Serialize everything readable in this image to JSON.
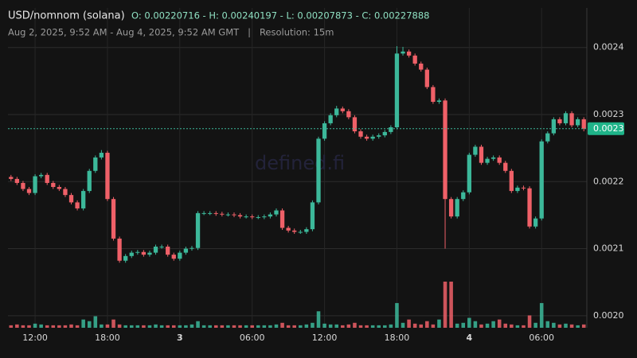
{
  "chart_data": {
    "type": "candlestick",
    "title": "USD/nomnom (solana)",
    "ohlc_summary": "O: 0.00220716 - H: 0.00240197 - L: 0.00207873 - C: 0.00227888",
    "subtitle": "Aug 2, 2025, 9:52 AM - Aug 4, 2025, 9:52 AM GMT   |   Resolution: 15m",
    "watermark": "defined.fi",
    "price_label": "0.0023",
    "up_color": "#3cb89a",
    "down_color": "#ef6068",
    "grid": true,
    "ylim": [
      0.001982,
      0.002459
    ],
    "yticks": [
      {
        "value": 0.002,
        "label": "0.0020"
      },
      0.0021,
      0.0022,
      0.0023,
      0.0024
    ],
    "xlim": [
      0,
      96
    ],
    "xticks": [
      {
        "value": 4.5,
        "label": "12:00"
      },
      {
        "value": 16.5,
        "label": "18:00"
      },
      {
        "value": 28.5,
        "label": "3"
      },
      {
        "value": 40.5,
        "label": "06:00"
      },
      {
        "value": 52.5,
        "label": "12:00"
      },
      {
        "value": 64.5,
        "label": "18:00"
      },
      {
        "value": 76.5,
        "label": "4"
      },
      {
        "value": 88.5,
        "label": "06:00"
      }
    ],
    "ohlc": [
      [
        0.002207,
        0.00221,
        0.002201,
        0.002204
      ],
      [
        0.002204,
        0.002207,
        0.002195,
        0.002198
      ],
      [
        0.002198,
        0.002201,
        0.002186,
        0.002189
      ],
      [
        0.002189,
        0.002192,
        0.00218,
        0.002183
      ],
      [
        0.002183,
        0.002211,
        0.00218,
        0.002208
      ],
      [
        0.002208,
        0.002213,
        0.002205,
        0.00221
      ],
      [
        0.00221,
        0.002213,
        0.002195,
        0.002198
      ],
      [
        0.002198,
        0.002201,
        0.002189,
        0.002192
      ],
      [
        0.002192,
        0.002195,
        0.002186,
        0.002189
      ],
      [
        0.002189,
        0.002192,
        0.002177,
        0.00218
      ],
      [
        0.00218,
        0.002183,
        0.002166,
        0.002169
      ],
      [
        0.002169,
        0.002172,
        0.002157,
        0.00216
      ],
      [
        0.00216,
        0.002189,
        0.002157,
        0.002186
      ],
      [
        0.002186,
        0.002219,
        0.002183,
        0.002216
      ],
      [
        0.002216,
        0.002239,
        0.002213,
        0.002236
      ],
      [
        0.002236,
        0.002247,
        0.002233,
        0.002243
      ],
      [
        0.002243,
        0.002246,
        0.002171,
        0.002174
      ],
      [
        0.002174,
        0.002177,
        0.002112,
        0.002115
      ],
      [
        0.002115,
        0.002118,
        0.002079,
        0.002082
      ],
      [
        0.002082,
        0.002092,
        0.002079,
        0.002089
      ],
      [
        0.002089,
        0.002097,
        0.002086,
        0.002094
      ],
      [
        0.002094,
        0.002098,
        0.002091,
        0.002095
      ],
      [
        0.002095,
        0.002098,
        0.002088,
        0.002091
      ],
      [
        0.002091,
        0.002097,
        0.002088,
        0.002094
      ],
      [
        0.002094,
        0.002106,
        0.002091,
        0.002103
      ],
      [
        0.002103,
        0.002106,
        0.0021,
        0.002103
      ],
      [
        0.002103,
        0.002106,
        0.002088,
        0.002091
      ],
      [
        0.002091,
        0.002094,
        0.002082,
        0.002085
      ],
      [
        0.002085,
        0.002097,
        0.002082,
        0.002094
      ],
      [
        0.002094,
        0.002103,
        0.002091,
        0.0021
      ],
      [
        0.0021,
        0.002104,
        0.002097,
        0.002101
      ],
      [
        0.002101,
        0.002156,
        0.002098,
        0.002153
      ],
      [
        0.002153,
        0.002156,
        0.00215,
        0.002153
      ],
      [
        0.002153,
        0.002156,
        0.00215,
        0.002153
      ],
      [
        0.002153,
        0.002156,
        0.002149,
        0.002152
      ],
      [
        0.002152,
        0.002155,
        0.002148,
        0.002151
      ],
      [
        0.002151,
        0.002154,
        0.002148,
        0.002151
      ],
      [
        0.002151,
        0.002154,
        0.002147,
        0.00215
      ],
      [
        0.00215,
        0.002153,
        0.002145,
        0.002148
      ],
      [
        0.002148,
        0.002151,
        0.002145,
        0.002148
      ],
      [
        0.002148,
        0.002151,
        0.002144,
        0.002147
      ],
      [
        0.002147,
        0.00215,
        0.002144,
        0.002147
      ],
      [
        0.002147,
        0.002151,
        0.002144,
        0.002148
      ],
      [
        0.002148,
        0.002154,
        0.002145,
        0.002151
      ],
      [
        0.002151,
        0.00216,
        0.002148,
        0.002157
      ],
      [
        0.002157,
        0.00216,
        0.002128,
        0.002131
      ],
      [
        0.002131,
        0.002134,
        0.002124,
        0.002127
      ],
      [
        0.002127,
        0.00213,
        0.002122,
        0.002125
      ],
      [
        0.002125,
        0.002128,
        0.002122,
        0.002125
      ],
      [
        0.002125,
        0.002132,
        0.002122,
        0.002129
      ],
      [
        0.002129,
        0.002172,
        0.002126,
        0.002169
      ],
      [
        0.002169,
        0.002267,
        0.002166,
        0.002264
      ],
      [
        0.002264,
        0.00229,
        0.002261,
        0.002287
      ],
      [
        0.002287,
        0.002302,
        0.002284,
        0.002299
      ],
      [
        0.002299,
        0.002313,
        0.002296,
        0.002309
      ],
      [
        0.002309,
        0.002312,
        0.002302,
        0.002305
      ],
      [
        0.002305,
        0.002308,
        0.002293,
        0.002296
      ],
      [
        0.002296,
        0.002299,
        0.002272,
        0.002275
      ],
      [
        0.002275,
        0.002278,
        0.002264,
        0.002267
      ],
      [
        0.002267,
        0.00227,
        0.002261,
        0.002264
      ],
      [
        0.002264,
        0.00227,
        0.002261,
        0.002267
      ],
      [
        0.002267,
        0.002272,
        0.002264,
        0.002269
      ],
      [
        0.002269,
        0.002277,
        0.002266,
        0.002274
      ],
      [
        0.002274,
        0.002284,
        0.002271,
        0.002281
      ],
      [
        0.002281,
        0.002402,
        0.002278,
        0.002391
      ],
      [
        0.002391,
        0.002401,
        0.002388,
        0.002394
      ],
      [
        0.002394,
        0.002397,
        0.002385,
        0.002388
      ],
      [
        0.002388,
        0.002391,
        0.002373,
        0.002376
      ],
      [
        0.002376,
        0.002379,
        0.002364,
        0.002367
      ],
      [
        0.002367,
        0.00237,
        0.002338,
        0.002341
      ],
      [
        0.002341,
        0.002344,
        0.002316,
        0.002319
      ],
      [
        0.002319,
        0.002324,
        0.002316,
        0.002321
      ],
      [
        0.002321,
        0.002324,
        0.0021,
        0.002174
      ],
      [
        0.002174,
        0.002177,
        0.002145,
        0.002148
      ],
      [
        0.002148,
        0.002177,
        0.002145,
        0.002174
      ],
      [
        0.002174,
        0.002187,
        0.002171,
        0.002184
      ],
      [
        0.002184,
        0.002243,
        0.002181,
        0.00224
      ],
      [
        0.00224,
        0.002255,
        0.002237,
        0.002252
      ],
      [
        0.002252,
        0.002255,
        0.002225,
        0.002228
      ],
      [
        0.002228,
        0.002237,
        0.002225,
        0.002234
      ],
      [
        0.002234,
        0.002239,
        0.002231,
        0.002236
      ],
      [
        0.002236,
        0.002239,
        0.002225,
        0.002228
      ],
      [
        0.002228,
        0.002231,
        0.002213,
        0.002216
      ],
      [
        0.002216,
        0.002219,
        0.002183,
        0.002186
      ],
      [
        0.002186,
        0.002194,
        0.002183,
        0.002191
      ],
      [
        0.002191,
        0.002194,
        0.002187,
        0.00219
      ],
      [
        0.00219,
        0.002193,
        0.00213,
        0.002133
      ],
      [
        0.002133,
        0.002148,
        0.00213,
        0.002145
      ],
      [
        0.002145,
        0.002263,
        0.002142,
        0.00226
      ],
      [
        0.00226,
        0.002275,
        0.002257,
        0.002272
      ],
      [
        0.002272,
        0.002296,
        0.002269,
        0.002293
      ],
      [
        0.002293,
        0.002296,
        0.002284,
        0.002287
      ],
      [
        0.002287,
        0.002305,
        0.002284,
        0.002302
      ],
      [
        0.002302,
        0.002305,
        0.002281,
        0.002284
      ],
      [
        0.002284,
        0.002296,
        0.002281,
        0.002293
      ],
      [
        0.002293,
        0.002296,
        0.002275,
        0.00227888
      ]
    ],
    "volume": [
      3,
      4,
      3,
      3,
      5,
      4,
      3,
      3,
      3,
      3,
      4,
      3,
      10,
      8,
      14,
      4,
      4,
      10,
      4,
      3,
      3,
      3,
      3,
      3,
      4,
      3,
      3,
      3,
      3,
      3,
      4,
      8,
      3,
      3,
      3,
      3,
      3,
      3,
      3,
      3,
      3,
      3,
      3,
      3,
      4,
      6,
      3,
      3,
      3,
      4,
      6,
      20,
      5,
      4,
      4,
      3,
      4,
      6,
      3,
      3,
      3,
      3,
      3,
      4,
      30,
      6,
      10,
      5,
      4,
      8,
      4,
      10,
      56,
      56,
      5,
      6,
      12,
      8,
      4,
      5,
      8,
      10,
      5,
      4,
      3,
      3,
      15,
      6,
      30,
      8,
      6,
      4,
      5,
      4,
      3,
      4
    ]
  }
}
